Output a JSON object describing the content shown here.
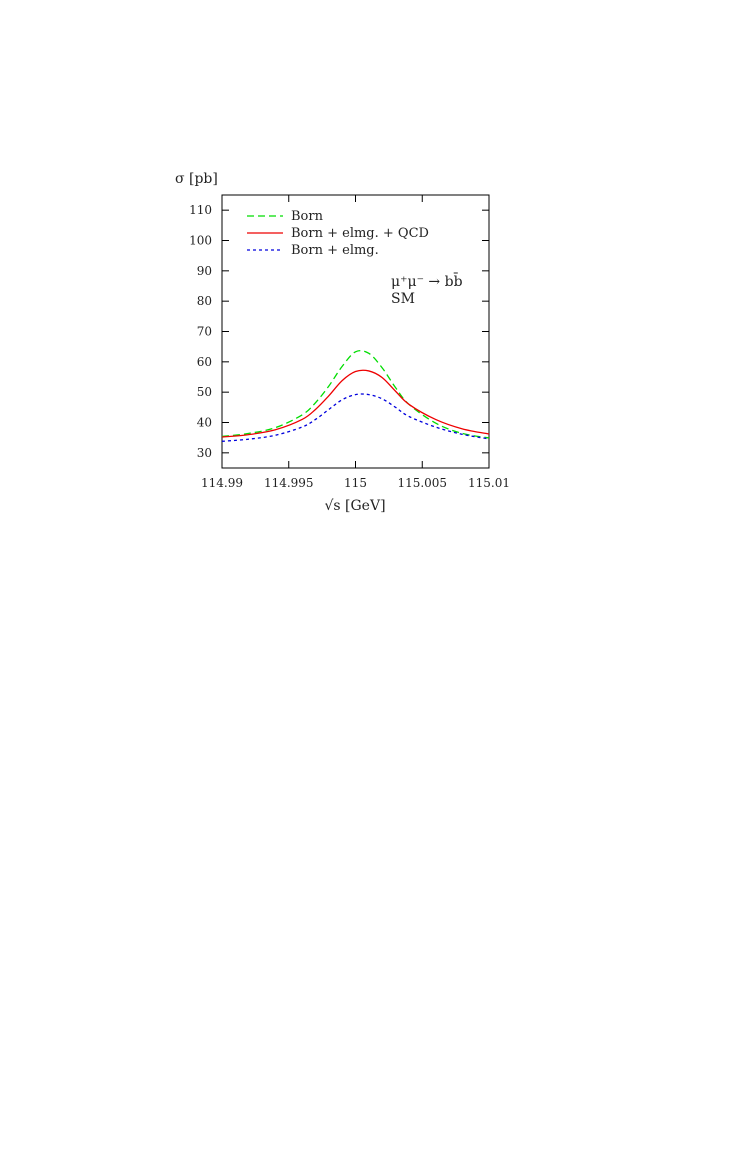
{
  "chart_data": {
    "type": "line",
    "title": "",
    "ylabel": "σ [pb]",
    "xlabel": "√s [GeV]",
    "xlim": [
      114.99,
      115.01
    ],
    "ylim": [
      25,
      115
    ],
    "xticks": [
      114.99,
      114.995,
      115,
      115.005,
      115.01
    ],
    "xtick_labels": [
      "114.99",
      "114.995",
      "115",
      "115.005",
      "115.01"
    ],
    "yticks": [
      30,
      40,
      50,
      60,
      70,
      80,
      90,
      100,
      110
    ],
    "ytick_labels": [
      "30",
      "40",
      "50",
      "60",
      "70",
      "80",
      "90",
      "100",
      "110"
    ],
    "grid": false,
    "legend_position": "top-left",
    "annotation": {
      "process": "μ⁺μ⁻ → bb̄",
      "model": "SM"
    },
    "x": [
      114.99,
      114.992,
      114.994,
      114.996,
      114.997,
      114.998,
      114.999,
      115.0,
      115.001,
      115.002,
      115.003,
      115.004,
      115.006,
      115.008,
      115.01
    ],
    "series": [
      {
        "name": "Born",
        "color": "#00dd00",
        "style": "dashed",
        "values": [
          35.4,
          36.4,
          38.3,
          42.5,
          46.5,
          52.0,
          58.5,
          63.3,
          62.8,
          58.0,
          51.5,
          46.0,
          39.8,
          36.4,
          34.9
        ]
      },
      {
        "name": "Born + elmg. + QCD",
        "color": "#ee0000",
        "style": "solid",
        "values": [
          35.2,
          36.0,
          37.6,
          41.0,
          44.3,
          48.8,
          53.8,
          56.8,
          57.0,
          54.8,
          50.3,
          46.0,
          41.0,
          37.9,
          36.2
        ]
      },
      {
        "name": "Born + elmg.",
        "color": "#0000dd",
        "style": "dotted",
        "values": [
          33.8,
          34.5,
          35.8,
          38.5,
          41.0,
          44.3,
          47.5,
          49.2,
          49.2,
          47.8,
          45.0,
          42.0,
          38.5,
          36.1,
          34.6
        ]
      }
    ]
  }
}
